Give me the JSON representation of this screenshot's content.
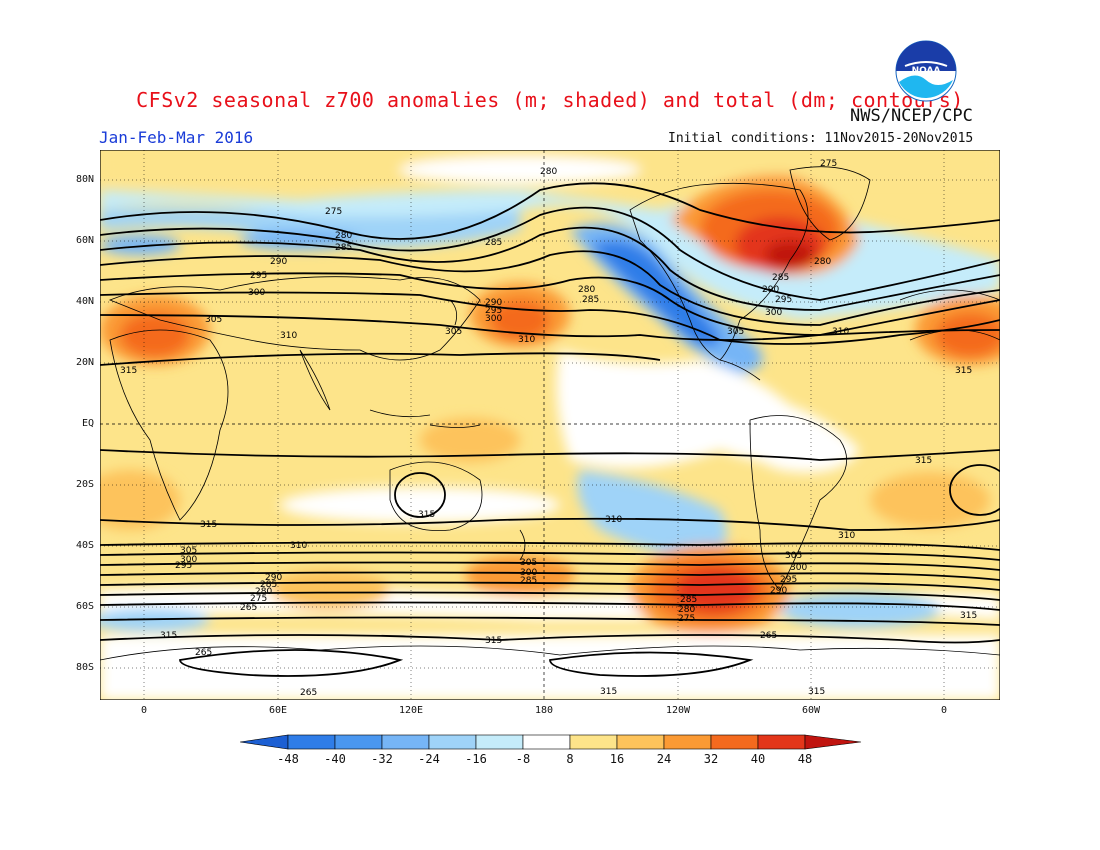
{
  "header": {
    "title": "CFSv2 seasonal z700 anomalies (m; shaded) and total (dm; contours)",
    "season": "Jan-Feb-Mar 2016",
    "agency": "NWS/NCEP/CPC",
    "initial_conditions": "Initial conditions: 11Nov2015-20Nov2015",
    "logo_text": "NOAA",
    "logo": "noaa-logo"
  },
  "map": {
    "lat_labels": [
      "80N",
      "60N",
      "40N",
      "20N",
      "EQ",
      "20S",
      "40S",
      "60S",
      "80S"
    ],
    "lon_labels": [
      "0",
      "60E",
      "120E",
      "180",
      "120W",
      "60W",
      "0"
    ],
    "contour_labels": [
      "275",
      "280",
      "285",
      "290",
      "295",
      "300",
      "305",
      "310",
      "315",
      "265",
      "270",
      "275",
      "280",
      "285",
      "290",
      "295",
      "300",
      "305",
      "310",
      "315",
      "265",
      "270",
      "275",
      "280",
      "285",
      "290",
      "295",
      "300",
      "305",
      "310",
      "315",
      "265",
      "270"
    ]
  },
  "colorbar": {
    "labels": [
      "-48",
      "-40",
      "-32",
      "-24",
      "-16",
      "-8",
      "8",
      "16",
      "24",
      "32",
      "40",
      "48"
    ],
    "colors": [
      "#1c5fd3",
      "#2f7de8",
      "#4a97f0",
      "#76b5f6",
      "#9fd3f8",
      "#c5ecfa",
      "#ffffff",
      "#fde48a",
      "#fdc35b",
      "#fb9a34",
      "#f46a1e",
      "#e3361a",
      "#c0140f"
    ]
  }
}
